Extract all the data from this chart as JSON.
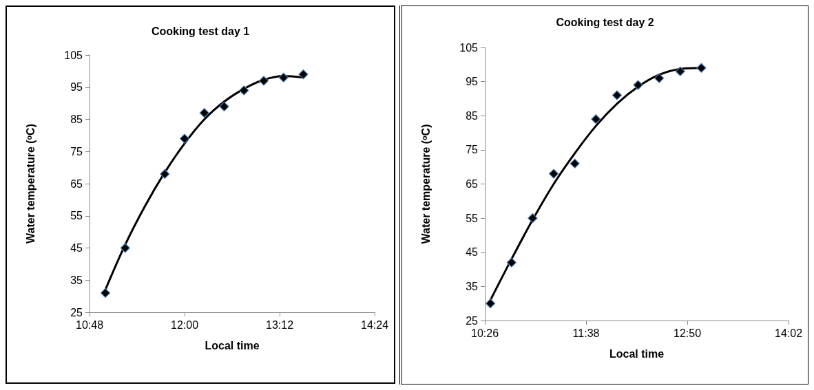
{
  "chart_data": [
    {
      "type": "scatter",
      "title": "Cooking test day 1",
      "xlabel": "Local time",
      "ylabel": "Water temperature (ᵒC)",
      "xlim": [
        10.8,
        14.4
      ],
      "xticks": [
        {
          "value": 10.8,
          "label": "10:48"
        },
        {
          "value": 12,
          "label": "12:00"
        },
        {
          "value": 13.2,
          "label": "13:12"
        },
        {
          "value": 14.4,
          "label": "14:24"
        }
      ],
      "ylim": [
        25,
        105
      ],
      "yticks": [
        25,
        35,
        45,
        55,
        65,
        75,
        85,
        95,
        105
      ],
      "grid": false,
      "series": [
        {
          "type": "scatter",
          "marker": "diamond",
          "color": "#000000",
          "x": [
            11.0,
            11.25,
            11.75,
            12.0,
            12.25,
            12.5,
            12.75,
            13.0,
            13.25,
            13.5
          ],
          "values": [
            31,
            45,
            68,
            79,
            87,
            89,
            94,
            97,
            98,
            99
          ]
        },
        {
          "type": "line",
          "marker": "none",
          "color": "#000000",
          "x": [
            11.0,
            11.25,
            11.5,
            11.75,
            12.0,
            12.25,
            12.5,
            12.75,
            13.0,
            13.25,
            13.5
          ],
          "values": [
            32,
            46,
            58,
            68.5,
            77.5,
            85,
            90.5,
            94.5,
            97.3,
            98.5,
            98
          ]
        }
      ]
    },
    {
      "type": "scatter",
      "title": "Cooking test day 2",
      "xlabel": "Local time",
      "ylabel": "Water temperature (ᵒC)",
      "xlim": [
        10.4333,
        14.0333
      ],
      "xticks": [
        {
          "value": 10.4333,
          "label": "10:26"
        },
        {
          "value": 11.6333,
          "label": "11:38"
        },
        {
          "value": 12.8333,
          "label": "12:50"
        },
        {
          "value": 14.0333,
          "label": "14:02"
        }
      ],
      "ylim": [
        25,
        105
      ],
      "yticks": [
        25,
        35,
        45,
        55,
        65,
        75,
        85,
        95,
        105
      ],
      "grid": false,
      "series": [
        {
          "type": "scatter",
          "marker": "diamond",
          "color": "#000000",
          "x": [
            10.5,
            10.75,
            11.0,
            11.25,
            11.5,
            11.75,
            12.0,
            12.25,
            12.5,
            12.75,
            13.0
          ],
          "values": [
            30,
            42,
            55,
            68,
            71,
            84,
            91,
            94,
            96,
            98,
            99
          ]
        },
        {
          "type": "line",
          "marker": "none",
          "color": "#000000",
          "x": [
            10.5,
            10.75,
            11.0,
            11.25,
            11.5,
            11.75,
            12.0,
            12.25,
            12.5,
            12.75,
            13.0
          ],
          "values": [
            31,
            43,
            54.5,
            65,
            74,
            82,
            88.5,
            93.5,
            97,
            98.7,
            99
          ]
        }
      ]
    }
  ]
}
